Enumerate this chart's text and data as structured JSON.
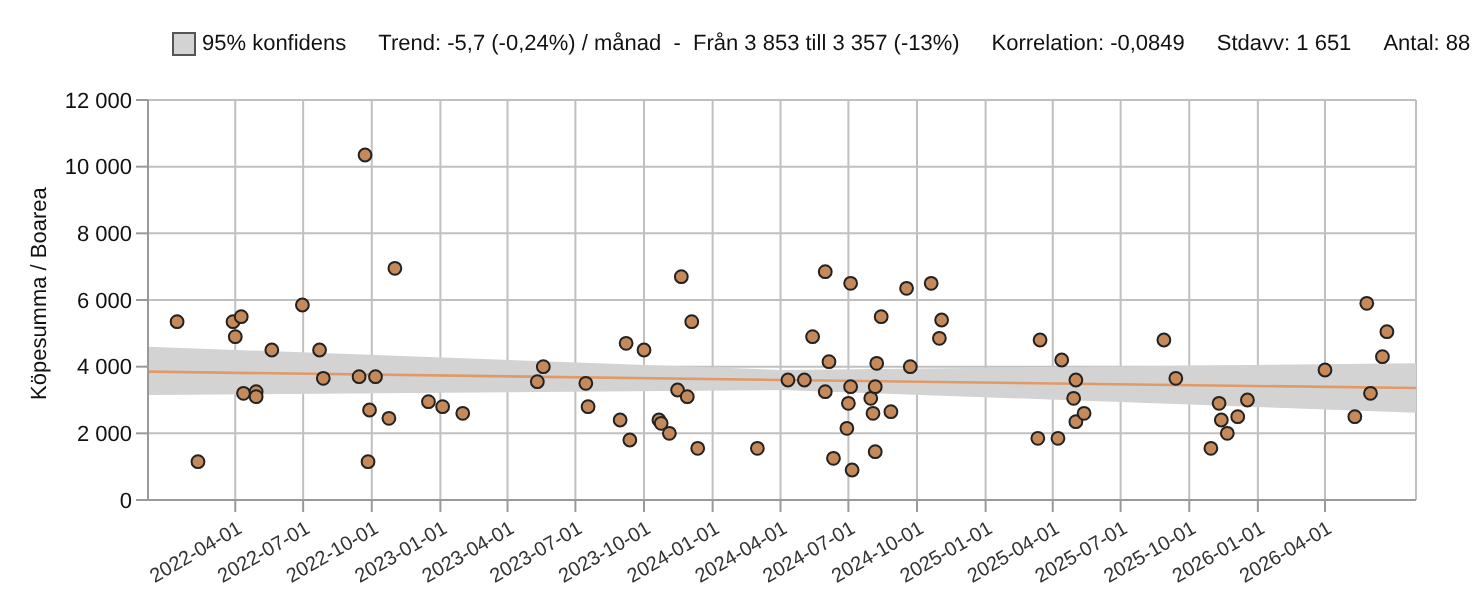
{
  "chart_data": {
    "type": "scatter",
    "ylabel": "Köpesumma / Boarea",
    "annotations": [
      "95% konfidens",
      "Trend: -5,7 (-0,24%) / månad  -  Från 3 853 till 3 357 (-13%)",
      "Korrelation: -0,0849",
      "Stdavv: 1 651",
      "Antal: 88"
    ],
    "xlim": [
      "2021-12-05",
      "2026-08-01"
    ],
    "xticks": [
      "2022-04-01",
      "2022-07-01",
      "2022-10-01",
      "2023-01-01",
      "2023-04-01",
      "2023-07-01",
      "2023-10-01",
      "2024-01-01",
      "2024-04-01",
      "2024-07-01",
      "2024-10-01",
      "2025-01-01",
      "2025-04-01",
      "2025-07-01",
      "2025-10-01",
      "2026-01-01",
      "2026-04-01"
    ],
    "ylim": [
      0,
      12000
    ],
    "yticks": [
      {
        "value": 0,
        "label": "0"
      },
      {
        "value": 2000,
        "label": "2 000"
      },
      {
        "value": 4000,
        "label": "4 000"
      },
      {
        "value": 6000,
        "label": "6 000"
      },
      {
        "value": 8000,
        "label": "8 000"
      },
      {
        "value": 10000,
        "label": "10 000"
      },
      {
        "value": 12000,
        "label": "12 000"
      }
    ],
    "grid": true,
    "series": [
      {
        "marker": "circle",
        "color": "#c68a5a",
        "x": [
          "2022-01-13",
          "2022-02-10",
          "2022-03-29",
          "2022-04-01",
          "2022-04-09",
          "2022-04-12",
          "2022-04-29",
          "2022-04-29",
          "2022-05-20",
          "2022-06-30",
          "2022-07-23",
          "2022-07-28",
          "2022-09-14",
          "2022-09-22",
          "2022-09-26",
          "2022-09-28",
          "2022-10-06",
          "2022-10-24",
          "2022-11-01",
          "2022-12-16",
          "2023-01-04",
          "2023-01-31",
          "2023-05-11",
          "2023-05-19",
          "2023-07-15",
          "2023-07-18",
          "2023-08-30",
          "2023-09-07",
          "2023-09-12",
          "2023-10-01",
          "2023-10-21",
          "2023-10-24",
          "2023-11-04",
          "2023-11-15",
          "2023-11-20",
          "2023-11-28",
          "2023-12-04",
          "2023-12-12",
          "2024-03-01",
          "2024-04-11",
          "2024-05-03",
          "2024-05-14",
          "2024-05-31",
          "2024-05-31",
          "2024-06-05",
          "2024-06-11",
          "2024-06-29",
          "2024-07-01",
          "2024-07-04",
          "2024-07-04",
          "2024-07-06",
          "2024-07-31",
          "2024-08-03",
          "2024-08-06",
          "2024-08-06",
          "2024-08-08",
          "2024-08-14",
          "2024-08-27",
          "2024-09-17",
          "2024-09-22",
          "2024-10-20",
          "2024-10-31",
          "2024-11-03",
          "2025-03-12",
          "2025-03-15",
          "2025-04-08",
          "2025-04-13",
          "2025-04-29",
          "2025-05-02",
          "2025-05-02",
          "2025-05-13",
          "2025-08-28",
          "2025-09-13",
          "2025-10-30",
          "2025-11-10",
          "2025-11-13",
          "2025-11-21",
          "2025-12-05",
          "2025-12-18",
          "2026-04-01",
          "2026-05-11",
          "2026-05-27",
          "2026-06-01",
          "2026-06-17",
          "2026-06-23"
        ],
        "values": [
          5350,
          1150,
          5350,
          4900,
          5500,
          3200,
          3250,
          3100,
          4500,
          5850,
          4500,
          3650,
          3700,
          10350,
          1150,
          2700,
          3700,
          2450,
          6950,
          2950,
          2800,
          2600,
          3550,
          4000,
          3500,
          2800,
          2400,
          4700,
          1800,
          4500,
          2400,
          2300,
          2000,
          3300,
          6700,
          3100,
          5350,
          1550,
          1550,
          3600,
          3600,
          4900,
          6850,
          3250,
          4150,
          1250,
          2150,
          2900,
          6500,
          3400,
          900,
          3050,
          2600,
          3400,
          1450,
          4100,
          5500,
          2650,
          6350,
          4000,
          6500,
          4850,
          5400,
          1850,
          4800,
          1850,
          4200,
          3050,
          3600,
          2350,
          2600,
          4800,
          3650,
          1550,
          2900,
          2400,
          2000,
          2500,
          3000,
          3900,
          2500,
          5900,
          3200,
          4300,
          5050
        ]
      },
      {
        "type": "line",
        "color": "#e09a6a",
        "x": [
          "2021-12-05",
          "2024-04-03",
          "2026-08-01"
        ],
        "values": [
          3850,
          3600,
          3360
        ],
        "lower": [
          3150,
          3300,
          2620
        ],
        "upper": [
          4600,
          3900,
          4100
        ]
      }
    ]
  }
}
